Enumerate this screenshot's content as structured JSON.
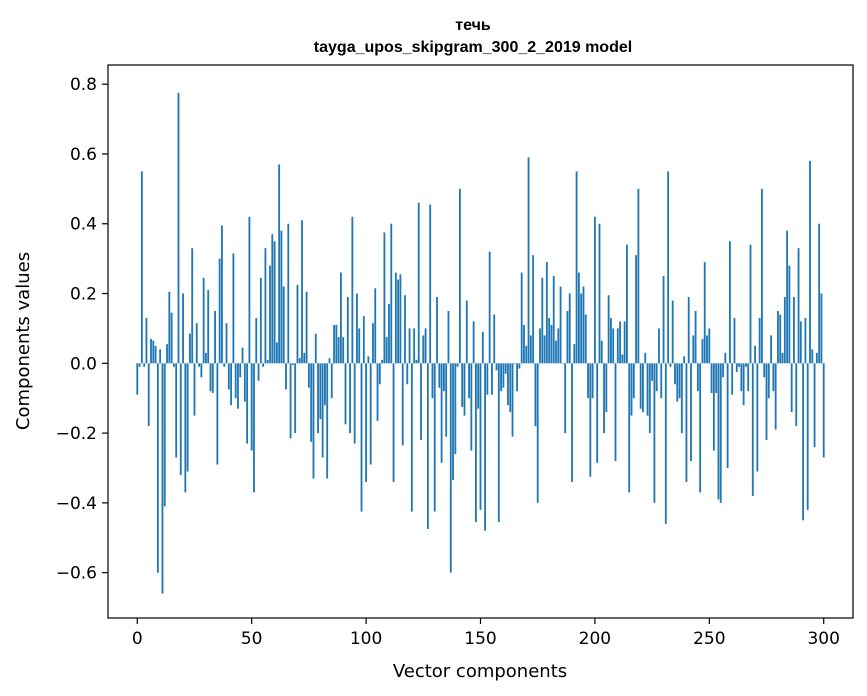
{
  "chart_data": {
    "type": "bar",
    "title": "течь",
    "subtitle": "tayga_upos_skipgram_300_2_2019 model",
    "xlabel": "Vector components",
    "ylabel": "Components values",
    "xlim": [
      -12.8,
      312.8
    ],
    "ylim": [
      -0.73,
      0.855
    ],
    "xticks": [
      0,
      50,
      100,
      150,
      200,
      250,
      300
    ],
    "xtick_labels": [
      "0",
      "50",
      "100",
      "150",
      "200",
      "250",
      "300"
    ],
    "yticks": [
      -0.6,
      -0.4,
      -0.2,
      0.0,
      0.2,
      0.4,
      0.6,
      0.8
    ],
    "ytick_labels": [
      "−0.6",
      "−0.4",
      "−0.2",
      "0.0",
      "0.2",
      "0.4",
      "0.6",
      "0.8"
    ],
    "grid": false,
    "bar_color": "#1f77b4",
    "values": [
      -0.09,
      -0.01,
      0.55,
      -0.01,
      0.13,
      -0.18,
      0.07,
      0.065,
      0.05,
      -0.6,
      0.04,
      -0.66,
      -0.41,
      0.055,
      0.205,
      0.145,
      -0.01,
      -0.27,
      0.775,
      -0.32,
      0.2,
      -0.37,
      -0.31,
      0.085,
      0.33,
      -0.15,
      0.115,
      -0.01,
      -0.04,
      0.245,
      0.03,
      0.21,
      -0.08,
      -0.085,
      0.15,
      -0.29,
      0.3,
      0.395,
      -0.01,
      0.115,
      -0.075,
      -0.12,
      0.315,
      -0.1,
      -0.13,
      -0.04,
      0.045,
      -0.11,
      -0.23,
      0.42,
      -0.25,
      -0.37,
      0.13,
      -0.05,
      0.245,
      -0.01,
      0.33,
      0.01,
      0.28,
      0.37,
      0.35,
      0.06,
      0.57,
      0.38,
      0.22,
      -0.075,
      0.4,
      -0.215,
      -0.005,
      -0.2,
      0.225,
      0.015,
      0.41,
      0.03,
      0.205,
      -0.07,
      -0.225,
      -0.33,
      0.085,
      -0.2,
      -0.16,
      -0.27,
      -0.12,
      -0.33,
      0.015,
      -0.1,
      0.11,
      0.11,
      0.075,
      0.26,
      0.075,
      -0.175,
      0.19,
      -0.2,
      0.42,
      -0.23,
      0.2,
      0.1,
      -0.425,
      0.135,
      -0.34,
      0.02,
      -0.29,
      0.115,
      0.215,
      -0.165,
      -0.06,
      0.01,
      0.375,
      0.075,
      0.17,
      0.4,
      -0.34,
      0.26,
      0.24,
      0.255,
      -0.235,
      0.195,
      -0.06,
      0.1,
      -0.425,
      0.1,
      0.01,
      0.46,
      -0.22,
      0.08,
      0.1,
      -0.475,
      0.455,
      -0.1,
      -0.425,
      0.19,
      -0.07,
      -0.285,
      -0.08,
      -0.21,
      0.15,
      -0.6,
      -0.335,
      -0.26,
      -0.01,
      0.5,
      -0.125,
      -0.15,
      0.18,
      -0.1,
      -0.25,
      0.12,
      -0.455,
      -0.13,
      -0.42,
      0.09,
      -0.48,
      -0.09,
      0.32,
      -0.09,
      0.14,
      -0.02,
      -0.455,
      -0.08,
      -0.07,
      -0.03,
      -0.12,
      -0.14,
      -0.21,
      0.0,
      -0.08,
      -0.015,
      0.26,
      0.11,
      0.05,
      0.59,
      0.08,
      0.31,
      -0.18,
      -0.4,
      0.1,
      0.245,
      0.08,
      0.29,
      0.13,
      0.11,
      0.25,
      0.065,
      0.1,
      0.22,
      0.0,
      -0.2,
      0.15,
      0.2,
      -0.34,
      0.055,
      0.55,
      0.26,
      0.2,
      0.22,
      0.14,
      -0.1,
      -0.325,
      -0.1,
      0.42,
      -0.285,
      0.4,
      0.065,
      -0.2,
      -0.14,
      0.195,
      0.13,
      0.1,
      -0.28,
      0.1,
      0.12,
      0.025,
      0.12,
      0.34,
      -0.37,
      -0.15,
      -0.1,
      0.31,
      0.5,
      -0.13,
      -0.14,
      0.03,
      -0.15,
      -0.2,
      -0.05,
      -0.4,
      -0.08,
      0.1,
      -0.1,
      0.25,
      -0.46,
      0.55,
      -0.01,
      0.18,
      -0.06,
      -0.11,
      -0.1,
      -0.2,
      0.02,
      -0.34,
      0.19,
      -0.28,
      0.08,
      0.15,
      -0.08,
      -0.37,
      0.07,
      0.29,
      0.08,
      0.1,
      -0.085,
      -0.25,
      -0.085,
      -0.39,
      -0.4,
      -0.04,
      0.03,
      -0.3,
      0.35,
      -0.09,
      0.13,
      -0.025,
      -0.01,
      -0.08,
      -0.12,
      -0.01,
      -0.08,
      0.34,
      -0.38,
      0.05,
      -0.31,
      0.13,
      0.5,
      -0.04,
      -0.22,
      -0.1,
      0.08,
      -0.08,
      -0.19,
      0.15,
      0.14,
      0.03,
      0.19,
      0.38,
      0.28,
      -0.14,
      0.19,
      -0.18,
      0.33,
      0.12,
      -0.45,
      0.13,
      -0.42,
      0.58,
      0.04,
      -0.24,
      0.03,
      0.4,
      0.2,
      -0.27
    ]
  }
}
